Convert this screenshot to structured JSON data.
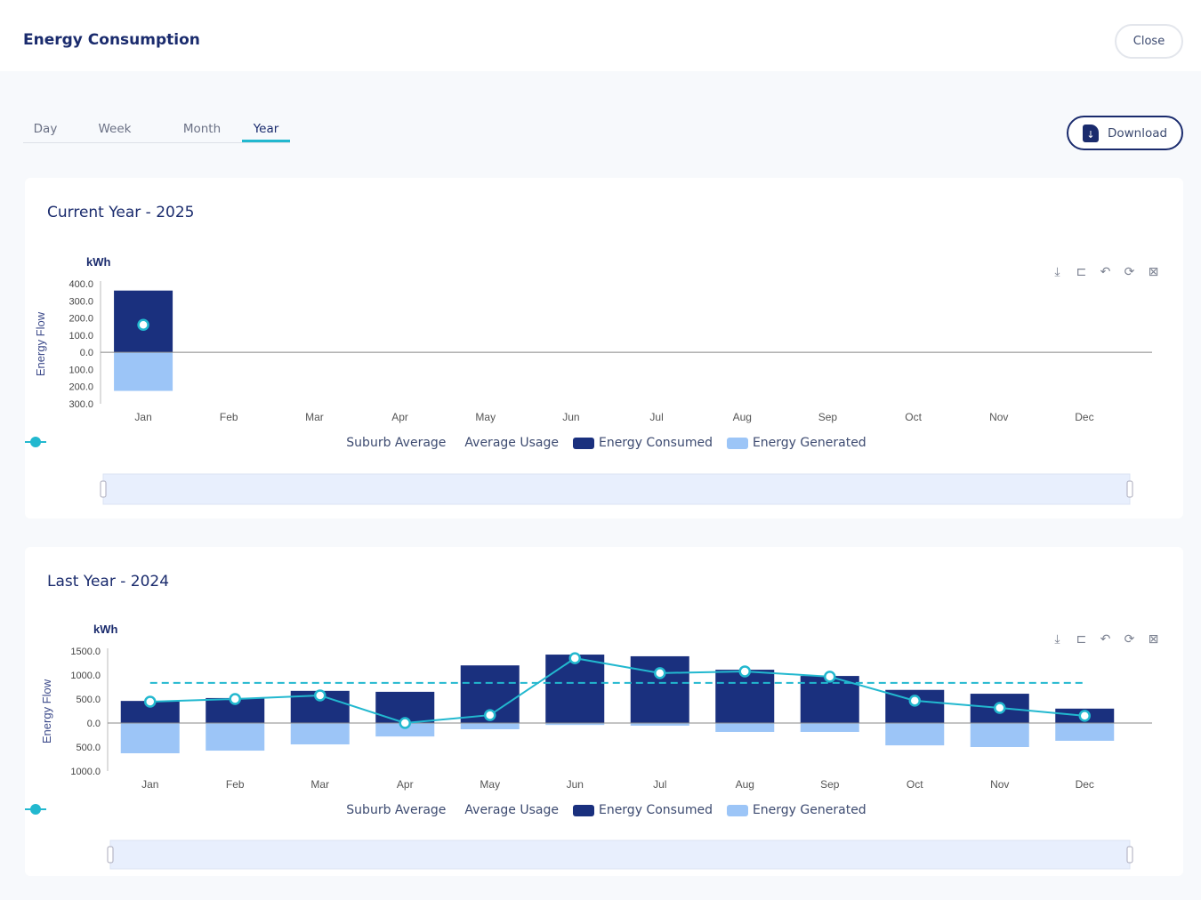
{
  "header": {
    "title": "Energy Consumption",
    "close_label": "Close"
  },
  "tabs": [
    {
      "label": "Day"
    },
    {
      "label": "Week"
    },
    {
      "label": "Month"
    },
    {
      "label": "Year",
      "active": true
    }
  ],
  "download_label": "Download",
  "colors": {
    "consumed": "#1a307e",
    "generated": "#9cc5f7",
    "line": "#22b8cf",
    "axis": "#888888"
  },
  "legend": [
    "Suburb Average",
    "Average Usage",
    "Energy Consumed",
    "Energy Generated"
  ],
  "toolbar_icons": [
    "download-icon",
    "zoom-icon",
    "zoom-reset-icon",
    "restore-icon",
    "select-icon"
  ],
  "chart_data": [
    {
      "type": "bar",
      "title": "Current Year - 2025",
      "ylabel": "Energy Flow",
      "unit": "kWh",
      "categories": [
        "Jan",
        "Feb",
        "Mar",
        "Apr",
        "May",
        "Jun",
        "Jul",
        "Aug",
        "Sep",
        "Oct",
        "Nov",
        "Dec"
      ],
      "ylim": [
        -300,
        400
      ],
      "yticks": [
        400,
        300,
        200,
        100,
        0,
        -100,
        -200,
        -300
      ],
      "ytick_labels": [
        "400.0",
        "300.0",
        "200.0",
        "100.0",
        "0.0",
        "100.0",
        "200.0",
        "300.0"
      ],
      "series": [
        {
          "name": "Energy Consumed",
          "type": "bar",
          "values": [
            360,
            null,
            null,
            null,
            null,
            null,
            null,
            null,
            null,
            null,
            null,
            null
          ]
        },
        {
          "name": "Energy Generated",
          "type": "bar",
          "values": [
            -225,
            null,
            null,
            null,
            null,
            null,
            null,
            null,
            null,
            null,
            null,
            null
          ]
        },
        {
          "name": "Suburb Average",
          "type": "line",
          "values": [
            160,
            null,
            null,
            null,
            null,
            null,
            null,
            null,
            null,
            null,
            null,
            null
          ]
        }
      ]
    },
    {
      "type": "bar",
      "title": "Last Year - 2024",
      "ylabel": "Energy Flow",
      "unit": "kWh",
      "categories": [
        "Jan",
        "Feb",
        "Mar",
        "Apr",
        "May",
        "Jun",
        "Jul",
        "Aug",
        "Sep",
        "Oct",
        "Nov",
        "Dec"
      ],
      "ylim": [
        -1000,
        1500
      ],
      "yticks": [
        1500,
        1000,
        500,
        0,
        -500,
        -1000
      ],
      "ytick_labels": [
        "1500.0",
        "1000.0",
        "500.0",
        "0.0",
        "500.0",
        "1000.0"
      ],
      "series": [
        {
          "name": "Energy Consumed",
          "type": "bar",
          "values": [
            460,
            520,
            670,
            650,
            1200,
            1425,
            1390,
            1110,
            980,
            690,
            610,
            300
          ]
        },
        {
          "name": "Energy Generated",
          "type": "bar",
          "values": [
            -630,
            -575,
            -445,
            -280,
            -130,
            -40,
            -55,
            -185,
            -185,
            -465,
            -500,
            -370
          ]
        },
        {
          "name": "Suburb Average",
          "type": "line",
          "values": [
            445,
            500,
            575,
            0,
            165,
            1350,
            1040,
            1075,
            965,
            465,
            315,
            150
          ]
        },
        {
          "name": "Average Usage",
          "type": "dashed",
          "value": 835
        }
      ]
    }
  ]
}
